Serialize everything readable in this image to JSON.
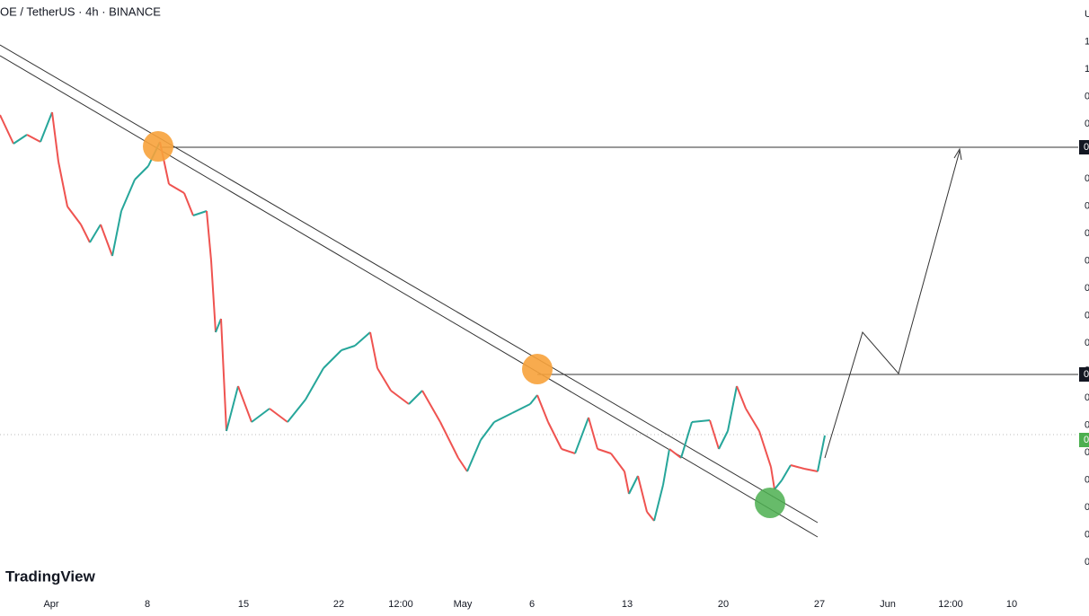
{
  "header": {
    "symbol": "OE / TetherUS · 4h · BINANCE"
  },
  "x_axis": {
    "labels": [
      "Apr",
      "8",
      "15",
      "22",
      "12:00",
      "May",
      "6",
      "13",
      "20",
      "27",
      "Jun",
      "12:00",
      "10"
    ]
  },
  "price_axis": {
    "labels": [
      "U",
      "1",
      "1",
      "0",
      "0",
      "0",
      "0",
      "0",
      "0",
      "0",
      "0",
      "0",
      "0",
      "0",
      "0",
      "0",
      "0",
      "0",
      "0",
      "0",
      "0"
    ],
    "markers": [
      "0",
      "0",
      "0"
    ]
  },
  "watermark": "TradingView"
}
